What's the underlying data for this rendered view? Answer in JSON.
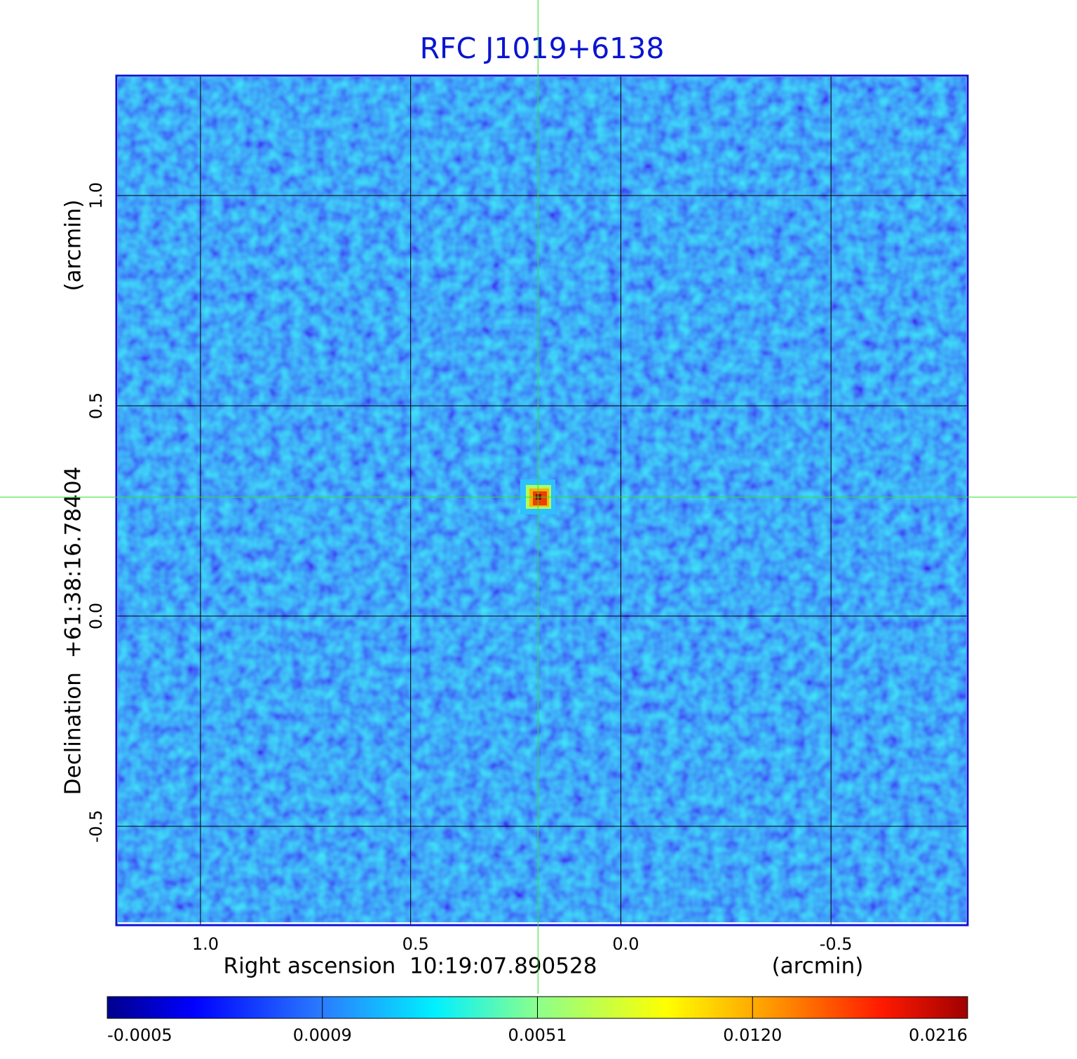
{
  "chart_data": {
    "type": "image",
    "title": "RFC J1019+6138",
    "xlabel": "Right ascension  10:19:07.890528",
    "xunit": "(arcmin)",
    "ylabel": "Declination  +61:38:16.78404",
    "yunit": "(arcmin)",
    "xlim": [
      1.2,
      -0.825
    ],
    "ylim": [
      -0.735,
      1.285
    ],
    "xticks": [
      {
        "value": 1,
        "label": "1.0"
      },
      0.5,
      {
        "value": 0,
        "label": "0.0"
      },
      -0.5
    ],
    "yticks": [
      {
        "value": 1,
        "label": "1.0"
      },
      0.5,
      {
        "value": 0,
        "label": "0.0"
      },
      -0.5
    ],
    "grid": true,
    "crosshair": {
      "x": 0.197,
      "y": 0.283
    },
    "colorbar": {
      "ticks": [
        -0.0005,
        0.0009,
        0.0051,
        {
          "value": 0.012,
          "label": "0.0120"
        },
        0.0216
      ]
    }
  }
}
